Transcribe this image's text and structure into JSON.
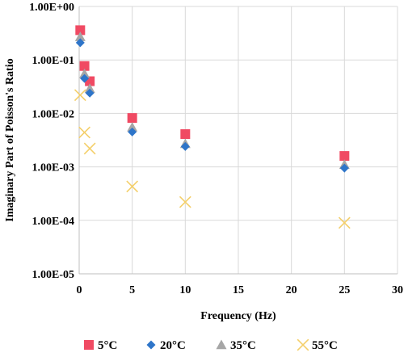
{
  "chart_data": {
    "type": "scatter",
    "title": "",
    "xlabel": "Frequency (Hz)",
    "ylabel": "Imaginary Part of Poisson's Ratio",
    "xlim": [
      0,
      30
    ],
    "ylim": [
      1e-05,
      1
    ],
    "yscale": "log",
    "grid": true,
    "legend_position": "bottom",
    "x_ticks": [
      "0",
      "5",
      "10",
      "15",
      "20",
      "25",
      "30"
    ],
    "y_ticks": [
      "1.00E-05",
      "1.00E-04",
      "1.00E-03",
      "1.00E-02",
      "1.00E-01",
      "1.00E+00"
    ],
    "series": [
      {
        "name": "5°C",
        "marker": "square",
        "color": "#f04a63",
        "points": [
          [
            0.1,
            0.36
          ],
          [
            0.5,
            0.077
          ],
          [
            1,
            0.04
          ],
          [
            5,
            0.0082
          ],
          [
            10,
            0.0041
          ],
          [
            25,
            0.0016
          ]
        ]
      },
      {
        "name": "20°C",
        "marker": "diamond",
        "color": "#2e75c9",
        "points": [
          [
            0.1,
            0.21
          ],
          [
            0.5,
            0.045
          ],
          [
            1,
            0.024
          ],
          [
            5,
            0.0045
          ],
          [
            10,
            0.0024
          ],
          [
            25,
            0.00095
          ]
        ]
      },
      {
        "name": "35°C",
        "marker": "triangle",
        "color": "#a6a6a6",
        "points": [
          [
            0.1,
            0.27
          ],
          [
            0.5,
            0.055
          ],
          [
            1,
            0.029
          ],
          [
            5,
            0.0055
          ],
          [
            10,
            0.0027
          ],
          [
            25,
            0.0011
          ]
        ]
      },
      {
        "name": "55°C",
        "marker": "x",
        "color": "#f4cf6a",
        "points": [
          [
            0.1,
            0.022
          ],
          [
            0.5,
            0.0044
          ],
          [
            1,
            0.0022
          ],
          [
            5,
            0.00043
          ],
          [
            10,
            0.00022
          ],
          [
            25,
            9e-05
          ]
        ]
      }
    ]
  }
}
